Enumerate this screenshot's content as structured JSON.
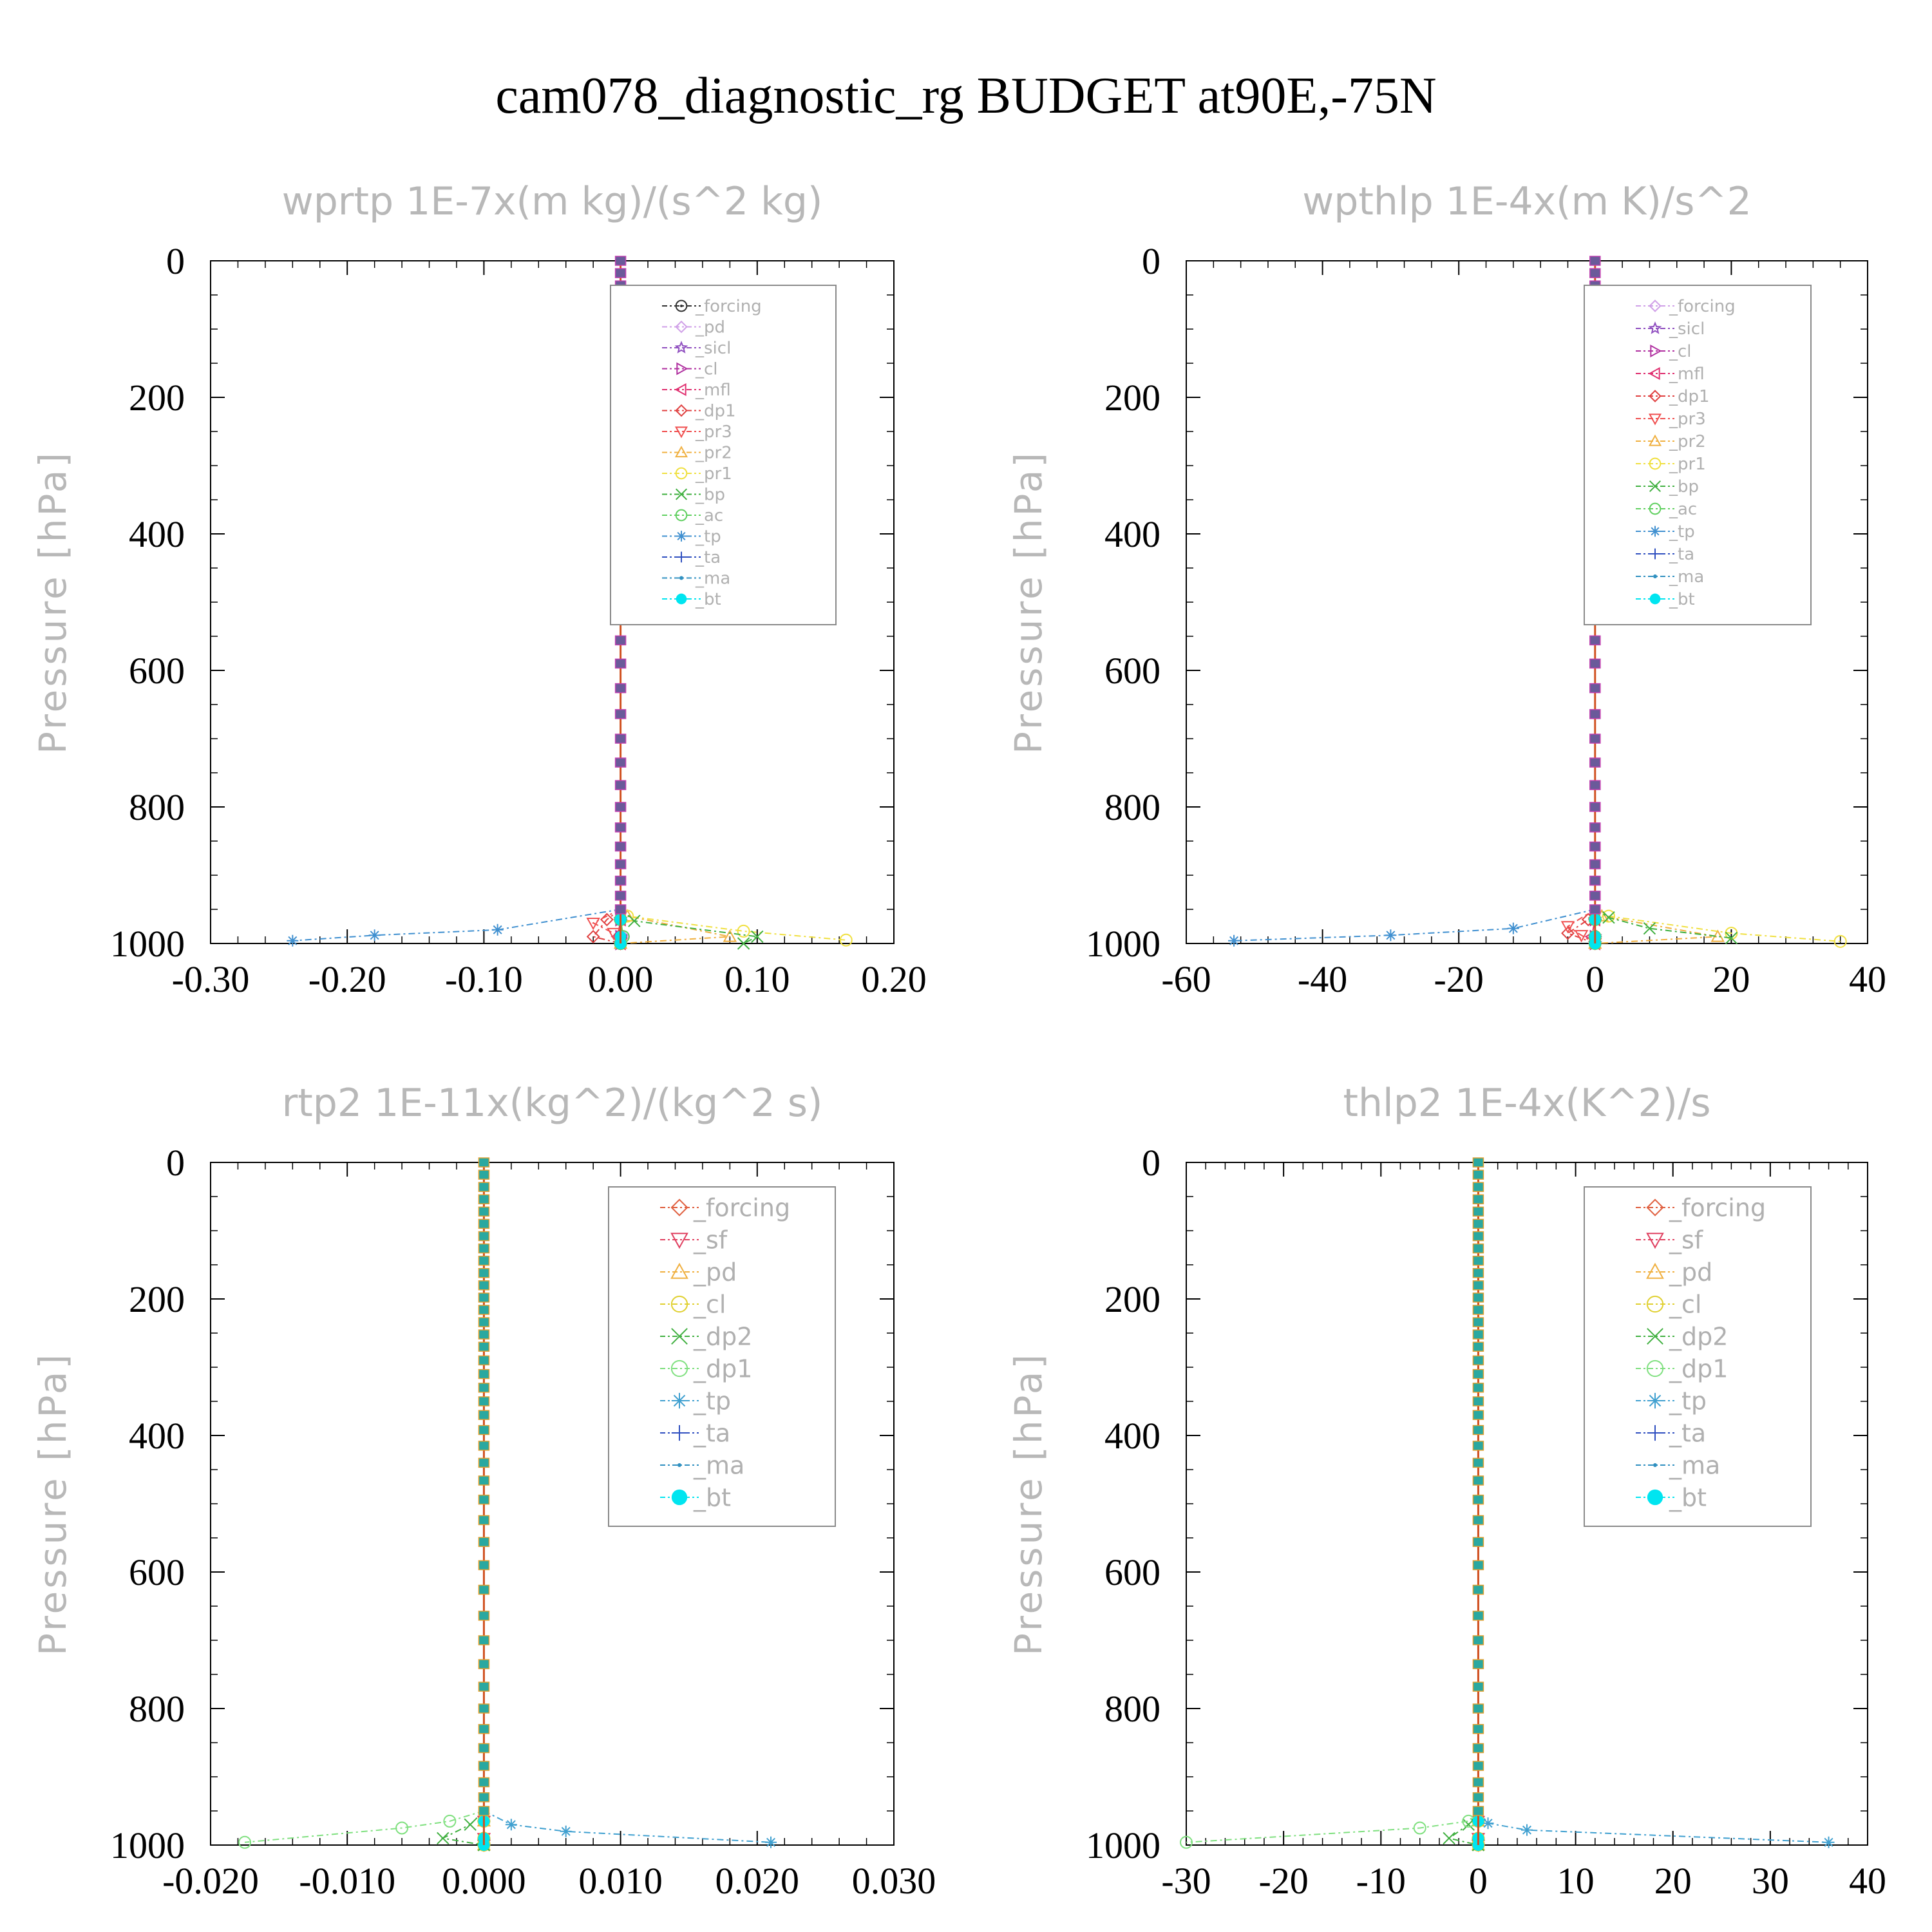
{
  "title": "cam078_diagnostic_rg  BUDGET at90E,-75N",
  "chart_data": [
    {
      "type": "line",
      "title": "wprtp  1E-7x(m kg)/(s^2 kg)",
      "ylabel": "Pressure [hPa]",
      "xlim": [
        -0.3,
        0.2
      ],
      "xticks": [
        "-0.30",
        "-0.20",
        "-0.10",
        "0.00",
        "0.10",
        "0.20"
      ],
      "ylim": [
        0,
        1000
      ],
      "yticks": [
        "0",
        "200",
        "400",
        "600",
        "800",
        "1000"
      ],
      "y_inverted": true,
      "series": [
        {
          "name": "_forcing",
          "color": "#333333",
          "marker": "circle-dot",
          "x": [
            0,
            0,
            0
          ],
          "y": [
            965,
            990,
            1000
          ]
        },
        {
          "name": "_pd",
          "color": "#d0a0e8",
          "marker": "diamond",
          "x": [
            0,
            0.002,
            0
          ],
          "y": [
            965,
            990,
            1000
          ]
        },
        {
          "name": "_sicl",
          "color": "#9050c0",
          "marker": "star",
          "x": [
            0,
            0,
            0
          ],
          "y": [
            965,
            990,
            1000
          ]
        },
        {
          "name": "_cl",
          "color": "#b030a0",
          "marker": "triangle-right",
          "x": [
            0,
            0,
            0
          ],
          "y": [
            965,
            990,
            1000
          ]
        },
        {
          "name": "_mfl",
          "color": "#e03070",
          "marker": "triangle-left",
          "x": [
            0,
            -0.002,
            0
          ],
          "y": [
            965,
            990,
            1000
          ]
        },
        {
          "name": "_dp1",
          "color": "#e04040",
          "marker": "diamond",
          "x": [
            -0.01,
            -0.02,
            0
          ],
          "y": [
            965,
            990,
            1000
          ]
        },
        {
          "name": "_pr3",
          "color": "#f05050",
          "marker": "triangle-down",
          "x": [
            -0.02,
            -0.005,
            0
          ],
          "y": [
            970,
            985,
            1000
          ]
        },
        {
          "name": "_pr2",
          "color": "#f0b040",
          "marker": "triangle-up",
          "x": [
            0.005,
            0.08,
            0
          ],
          "y": [
            960,
            990,
            1000
          ]
        },
        {
          "name": "_pr1",
          "color": "#f0e040",
          "marker": "circle",
          "x": [
            0.005,
            0.09,
            0.165
          ],
          "y": [
            960,
            982,
            995
          ]
        },
        {
          "name": "_bp",
          "color": "#40b040",
          "marker": "x",
          "x": [
            0.01,
            0.1,
            0.09
          ],
          "y": [
            967,
            990,
            1000
          ]
        },
        {
          "name": "_ac",
          "color": "#60d060",
          "marker": "circle",
          "x": [
            0,
            0.002,
            0
          ],
          "y": [
            965,
            990,
            1000
          ]
        },
        {
          "name": "_tp",
          "color": "#4090d0",
          "marker": "asterisk",
          "x": [
            -0.09,
            -0.18,
            -0.24
          ],
          "y": [
            980,
            988,
            996
          ]
        },
        {
          "name": "_ta",
          "color": "#3050c0",
          "marker": "plus",
          "x": [
            0,
            0,
            0
          ],
          "y": [
            965,
            990,
            1000
          ]
        },
        {
          "name": "_ma",
          "color": "#3090c0",
          "marker": "dot",
          "x": [
            0,
            0,
            0
          ],
          "y": [
            965,
            990,
            1000
          ]
        },
        {
          "name": "_bt",
          "color": "#00e5f0",
          "marker": "filled-circle",
          "x": [
            0,
            0,
            0
          ],
          "y": [
            965,
            990,
            1000
          ]
        }
      ]
    },
    {
      "type": "line",
      "title": "wpthlp  1E-4x(m K)/s^2",
      "ylabel": "Pressure [hPa]",
      "xlim": [
        -60,
        40
      ],
      "xticks": [
        "-60",
        "-40",
        "-20",
        "0",
        "20",
        "40"
      ],
      "ylim": [
        0,
        1000
      ],
      "yticks": [
        "0",
        "200",
        "400",
        "600",
        "800",
        "1000"
      ],
      "y_inverted": true,
      "series": [
        {
          "name": "_forcing",
          "color": "#d0a0e8",
          "marker": "diamond",
          "x": [
            0,
            0,
            0
          ],
          "y": [
            965,
            990,
            1000
          ]
        },
        {
          "name": "_sicl",
          "color": "#9050c0",
          "marker": "star",
          "x": [
            0,
            0,
            0
          ],
          "y": [
            965,
            990,
            1000
          ]
        },
        {
          "name": "_cl",
          "color": "#b030a0",
          "marker": "triangle-right",
          "x": [
            0,
            0,
            0
          ],
          "y": [
            965,
            990,
            1000
          ]
        },
        {
          "name": "_mfl",
          "color": "#e03070",
          "marker": "triangle-left",
          "x": [
            0,
            -0.5,
            0
          ],
          "y": [
            965,
            990,
            1000
          ]
        },
        {
          "name": "_dp1",
          "color": "#e04040",
          "marker": "diamond",
          "x": [
            -1,
            -4,
            0
          ],
          "y": [
            965,
            985,
            1000
          ]
        },
        {
          "name": "_pr3",
          "color": "#f05050",
          "marker": "triangle-down",
          "x": [
            -4,
            -2,
            0
          ],
          "y": [
            975,
            988,
            1000
          ]
        },
        {
          "name": "_pr2",
          "color": "#f0b040",
          "marker": "triangle-up",
          "x": [
            1,
            18,
            0
          ],
          "y": [
            960,
            990,
            1000
          ]
        },
        {
          "name": "_pr1",
          "color": "#f0e040",
          "marker": "circle",
          "x": [
            2,
            20,
            36
          ],
          "y": [
            960,
            985,
            997
          ]
        },
        {
          "name": "_bp",
          "color": "#40b040",
          "marker": "x",
          "x": [
            2,
            8,
            20
          ],
          "y": [
            962,
            978,
            992
          ]
        },
        {
          "name": "_ac",
          "color": "#60d060",
          "marker": "circle",
          "x": [
            0,
            0,
            0
          ],
          "y": [
            965,
            990,
            1000
          ]
        },
        {
          "name": "_tp",
          "color": "#4090d0",
          "marker": "asterisk",
          "x": [
            -12,
            -30,
            -53
          ],
          "y": [
            978,
            988,
            996
          ]
        },
        {
          "name": "_ta",
          "color": "#3050c0",
          "marker": "plus",
          "x": [
            0,
            0,
            0
          ],
          "y": [
            965,
            990,
            1000
          ]
        },
        {
          "name": "_ma",
          "color": "#3090c0",
          "marker": "dot",
          "x": [
            0,
            0,
            0
          ],
          "y": [
            965,
            990,
            1000
          ]
        },
        {
          "name": "_bt",
          "color": "#00e5f0",
          "marker": "filled-circle",
          "x": [
            0,
            0,
            0
          ],
          "y": [
            965,
            990,
            1000
          ]
        }
      ]
    },
    {
      "type": "line",
      "title": "rtp2  1E-11x(kg^2)/(kg^2 s)",
      "ylabel": "Pressure [hPa]",
      "xlim": [
        -0.02,
        0.03
      ],
      "xticks": [
        "-0.020",
        "-0.010",
        "0.000",
        "0.010",
        "0.020",
        "0.030"
      ],
      "ylim": [
        0,
        1000
      ],
      "yticks": [
        "0",
        "200",
        "400",
        "600",
        "800",
        "1000"
      ],
      "y_inverted": true,
      "series": [
        {
          "name": "_forcing",
          "color": "#e06040",
          "marker": "diamond",
          "x": [
            0,
            0,
            0
          ],
          "y": [
            965,
            990,
            1000
          ]
        },
        {
          "name": "_sf",
          "color": "#e04060",
          "marker": "triangle-down",
          "x": [
            0,
            0,
            0
          ],
          "y": [
            965,
            990,
            1000
          ]
        },
        {
          "name": "_pd",
          "color": "#f0b040",
          "marker": "triangle-up",
          "x": [
            0,
            0,
            0
          ],
          "y": [
            965,
            990,
            1000
          ]
        },
        {
          "name": "_cl",
          "color": "#e0d030",
          "marker": "circle",
          "x": [
            0,
            0,
            0
          ],
          "y": [
            965,
            990,
            1000
          ]
        },
        {
          "name": "_dp2",
          "color": "#40b040",
          "marker": "x",
          "x": [
            -0.001,
            -0.003,
            0
          ],
          "y": [
            970,
            990,
            1000
          ]
        },
        {
          "name": "_dp1",
          "color": "#80e080",
          "marker": "circle",
          "x": [
            -0.0025,
            -0.006,
            -0.0175
          ],
          "y": [
            965,
            975,
            996
          ]
        },
        {
          "name": "_tp",
          "color": "#40a0d0",
          "marker": "asterisk",
          "x": [
            0.002,
            0.006,
            0.021
          ],
          "y": [
            970,
            980,
            996
          ]
        },
        {
          "name": "_ta",
          "color": "#3050c0",
          "marker": "plus",
          "x": [
            0,
            0,
            0
          ],
          "y": [
            965,
            990,
            1000
          ]
        },
        {
          "name": "_ma",
          "color": "#3090c0",
          "marker": "dot",
          "x": [
            0,
            0,
            0
          ],
          "y": [
            965,
            990,
            1000
          ]
        },
        {
          "name": "_bt",
          "color": "#00e5f0",
          "marker": "filled-circle",
          "x": [
            0,
            0,
            0
          ],
          "y": [
            965,
            990,
            1000
          ]
        }
      ]
    },
    {
      "type": "line",
      "title": "thlp2  1E-4x(K^2)/s",
      "ylabel": "Pressure [hPa]",
      "xlim": [
        -30,
        40
      ],
      "xticks": [
        "-30",
        "-20",
        "-10",
        "0",
        "10",
        "20",
        "30",
        "40"
      ],
      "ylim": [
        0,
        1000
      ],
      "yticks": [
        "0",
        "200",
        "400",
        "600",
        "800",
        "1000"
      ],
      "y_inverted": true,
      "series": [
        {
          "name": "_forcing",
          "color": "#e06040",
          "marker": "diamond",
          "x": [
            0,
            0,
            0
          ],
          "y": [
            965,
            990,
            1000
          ]
        },
        {
          "name": "_sf",
          "color": "#e04060",
          "marker": "triangle-down",
          "x": [
            0,
            0,
            0
          ],
          "y": [
            965,
            990,
            1000
          ]
        },
        {
          "name": "_pd",
          "color": "#f0b040",
          "marker": "triangle-up",
          "x": [
            0,
            0,
            0
          ],
          "y": [
            965,
            990,
            1000
          ]
        },
        {
          "name": "_cl",
          "color": "#e0d030",
          "marker": "circle",
          "x": [
            0,
            0,
            0
          ],
          "y": [
            965,
            990,
            1000
          ]
        },
        {
          "name": "_dp2",
          "color": "#40b040",
          "marker": "x",
          "x": [
            -1,
            -3,
            0
          ],
          "y": [
            970,
            990,
            1000
          ]
        },
        {
          "name": "_dp1",
          "color": "#80e080",
          "marker": "circle",
          "x": [
            -1,
            -6,
            -30
          ],
          "y": [
            965,
            975,
            996
          ]
        },
        {
          "name": "_tp",
          "color": "#40a0d0",
          "marker": "asterisk",
          "x": [
            1,
            5,
            36
          ],
          "y": [
            968,
            978,
            996
          ]
        },
        {
          "name": "_ta",
          "color": "#3050c0",
          "marker": "plus",
          "x": [
            0,
            0,
            0
          ],
          "y": [
            965,
            990,
            1000
          ]
        },
        {
          "name": "_ma",
          "color": "#3090c0",
          "marker": "dot",
          "x": [
            0,
            0,
            0
          ],
          "y": [
            965,
            990,
            1000
          ]
        },
        {
          "name": "_bt",
          "color": "#00e5f0",
          "marker": "filled-circle",
          "x": [
            0,
            0,
            0
          ],
          "y": [
            965,
            990,
            1000
          ]
        }
      ]
    }
  ]
}
